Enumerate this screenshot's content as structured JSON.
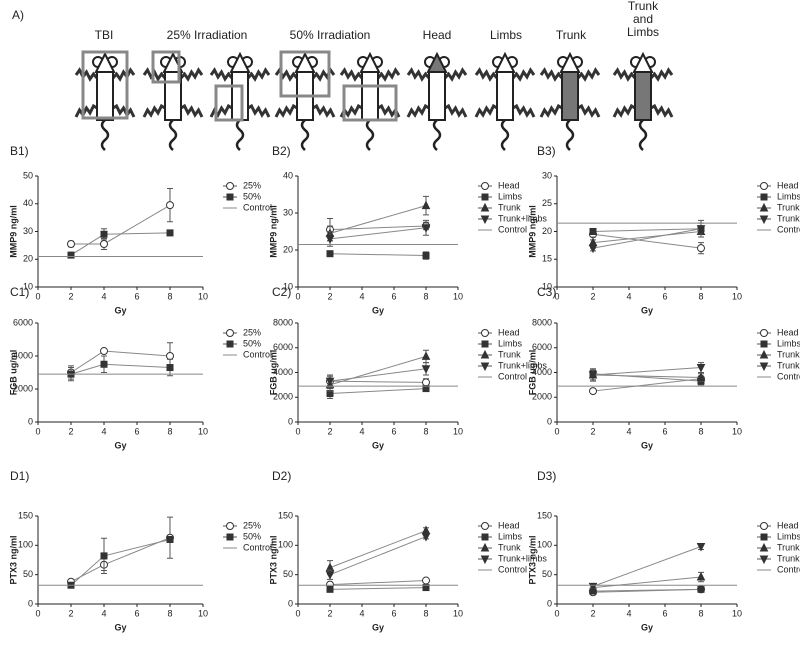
{
  "figure": {
    "label": "A)",
    "groups": [
      "TBI",
      "25% Irradiation",
      "50% Irradiation",
      "Head",
      "Limbs",
      "Trunk",
      "Trunk and Limbs"
    ]
  },
  "chart_data": [
    {
      "type": "line",
      "panel": "B1)",
      "y_label": "MMP9 ng/ml",
      "x_label": "Gy",
      "xlim": [
        0,
        10
      ],
      "xticks": [
        0,
        2,
        4,
        6,
        8,
        10
      ],
      "ylim": [
        10,
        50
      ],
      "yticks": [
        10,
        20,
        30,
        40,
        50
      ],
      "series": [
        {
          "name": "25%",
          "marker": "circle",
          "color": "#333333",
          "x": [
            2,
            4,
            8
          ],
          "values": [
            25.5,
            25.5,
            39.5
          ],
          "errors": [
            1,
            2,
            6
          ]
        },
        {
          "name": "50%",
          "marker": "square",
          "color": "#333333",
          "x": [
            2,
            4,
            8
          ],
          "values": [
            21.5,
            29,
            29.5
          ],
          "errors": [
            0.5,
            2,
            1
          ]
        },
        {
          "name": "Control",
          "marker": "none",
          "color": "#888888",
          "x": [
            0,
            10
          ],
          "values": [
            21,
            21
          ]
        }
      ]
    },
    {
      "type": "line",
      "panel": "B2)",
      "y_label": "MMP9 ng/ml",
      "x_label": "Gy",
      "xlim": [
        0,
        10
      ],
      "xticks": [
        0,
        2,
        4,
        6,
        8,
        10
      ],
      "ylim": [
        10,
        40
      ],
      "yticks": [
        10,
        20,
        30,
        40
      ],
      "series": [
        {
          "name": "Head",
          "marker": "circle",
          "color": "#333333",
          "x": [
            2,
            8
          ],
          "values": [
            25.5,
            26.5
          ],
          "errors": [
            3,
            1
          ]
        },
        {
          "name": "Limbs",
          "marker": "square",
          "color": "#333333",
          "x": [
            2,
            8
          ],
          "values": [
            19,
            18.5
          ],
          "errors": [
            0.5,
            1
          ]
        },
        {
          "name": "Trunk",
          "marker": "triangle",
          "color": "#333333",
          "x": [
            2,
            8
          ],
          "values": [
            24.5,
            32
          ],
          "errors": [
            2,
            2.5
          ]
        },
        {
          "name": "Trunk+limbs",
          "marker": "triangle-down",
          "color": "#333333",
          "x": [
            2,
            8
          ],
          "values": [
            23,
            26
          ],
          "errors": [
            2,
            2
          ]
        },
        {
          "name": "Control",
          "marker": "none",
          "color": "#888888",
          "x": [
            0,
            10
          ],
          "values": [
            21.5,
            21.5
          ]
        }
      ]
    },
    {
      "type": "line",
      "panel": "B3)",
      "y_label": "MMP9 ng/ml",
      "x_label": "Gy",
      "xlim": [
        0,
        10
      ],
      "xticks": [
        0,
        2,
        4,
        6,
        8,
        10
      ],
      "ylim": [
        10,
        30
      ],
      "yticks": [
        10,
        15,
        20,
        25,
        30
      ],
      "series": [
        {
          "name": "Head",
          "marker": "circle",
          "color": "#333333",
          "x": [
            2,
            8
          ],
          "values": [
            19.5,
            17
          ],
          "errors": [
            1,
            1
          ]
        },
        {
          "name": "Limbs",
          "marker": "square",
          "color": "#333333",
          "x": [
            2,
            8
          ],
          "values": [
            20,
            20.5
          ],
          "errors": [
            0.5,
            1
          ]
        },
        {
          "name": "Trunk",
          "marker": "triangle",
          "color": "#333333",
          "x": [
            2,
            8
          ],
          "values": [
            18,
            20
          ],
          "errors": [
            1,
            1
          ]
        },
        {
          "name": "Trunk+limbs",
          "marker": "triangle-down",
          "color": "#333333",
          "x": [
            2,
            8
          ],
          "values": [
            17,
            20.5
          ],
          "errors": [
            0.5,
            1.5
          ]
        },
        {
          "name": "Control",
          "marker": "none",
          "color": "#888888",
          "x": [
            0,
            10
          ],
          "values": [
            21.5,
            21.5
          ]
        }
      ]
    },
    {
      "type": "line",
      "panel": "C1)",
      "y_label": "FGB ug/ml",
      "x_label": "Gy",
      "xlim": [
        0,
        10
      ],
      "xticks": [
        0,
        2,
        4,
        6,
        8,
        10
      ],
      "ylim": [
        0,
        6000
      ],
      "yticks": [
        0,
        2000,
        4000,
        6000
      ],
      "series": [
        {
          "name": "25%",
          "marker": "circle",
          "color": "#333333",
          "x": [
            2,
            4,
            8
          ],
          "values": [
            3000,
            4300,
            4000
          ],
          "errors": [
            400,
            100,
            800
          ]
        },
        {
          "name": "50%",
          "marker": "square",
          "color": "#333333",
          "x": [
            2,
            4,
            8
          ],
          "values": [
            2900,
            3500,
            3300
          ],
          "errors": [
            400,
            500,
            500
          ]
        },
        {
          "name": "Control",
          "marker": "none",
          "color": "#888888",
          "x": [
            0,
            10
          ],
          "values": [
            2900,
            2900
          ]
        }
      ]
    },
    {
      "type": "line",
      "panel": "C2)",
      "y_label": "FGB ug/ml",
      "x_label": "Gy",
      "xlim": [
        0,
        10
      ],
      "xticks": [
        0,
        2,
        4,
        6,
        8,
        10
      ],
      "ylim": [
        0,
        8000
      ],
      "yticks": [
        0,
        2000,
        4000,
        6000,
        8000
      ],
      "series": [
        {
          "name": "Head",
          "marker": "circle",
          "color": "#333333",
          "x": [
            2,
            8
          ],
          "values": [
            3300,
            3200
          ],
          "errors": [
            400,
            300
          ]
        },
        {
          "name": "Limbs",
          "marker": "square",
          "color": "#333333",
          "x": [
            2,
            8
          ],
          "values": [
            2300,
            2700
          ],
          "errors": [
            400,
            200
          ]
        },
        {
          "name": "Trunk",
          "marker": "triangle",
          "color": "#333333",
          "x": [
            2,
            8
          ],
          "values": [
            3000,
            5300
          ],
          "errors": [
            500,
            500
          ]
        },
        {
          "name": "Trunk+limbs",
          "marker": "triangle-down",
          "color": "#333333",
          "x": [
            2,
            8
          ],
          "values": [
            3300,
            4300
          ],
          "errors": [
            500,
            500
          ]
        },
        {
          "name": "Control",
          "marker": "none",
          "color": "#888888",
          "x": [
            0,
            10
          ],
          "values": [
            2900,
            2900
          ]
        }
      ]
    },
    {
      "type": "line",
      "panel": "C3)",
      "y_label": "FGB ug/ml",
      "x_label": "Gy",
      "xlim": [
        0,
        10
      ],
      "xticks": [
        0,
        2,
        4,
        6,
        8,
        10
      ],
      "ylim": [
        0,
        8000
      ],
      "yticks": [
        0,
        2000,
        4000,
        6000,
        8000
      ],
      "series": [
        {
          "name": "Head",
          "marker": "circle",
          "color": "#333333",
          "x": [
            2,
            8
          ],
          "values": [
            2500,
            3500
          ],
          "errors": [
            100,
            200
          ]
        },
        {
          "name": "Limbs",
          "marker": "square",
          "color": "#333333",
          "x": [
            2,
            8
          ],
          "values": [
            3900,
            3300
          ],
          "errors": [
            300,
            300
          ]
        },
        {
          "name": "Trunk",
          "marker": "triangle",
          "color": "#333333",
          "x": [
            2,
            8
          ],
          "values": [
            3800,
            3600
          ],
          "errors": [
            400,
            300
          ]
        },
        {
          "name": "Trunk+limbs",
          "marker": "triangle-down",
          "color": "#333333",
          "x": [
            2,
            8
          ],
          "values": [
            3800,
            4400
          ],
          "errors": [
            500,
            400
          ]
        },
        {
          "name": "Control",
          "marker": "none",
          "color": "#888888",
          "x": [
            0,
            10
          ],
          "values": [
            2900,
            2900
          ]
        }
      ]
    },
    {
      "type": "line",
      "panel": "D1)",
      "y_label": "PTX3 ng/ml",
      "x_label": "Gy",
      "xlim": [
        0,
        10
      ],
      "xticks": [
        0,
        2,
        4,
        6,
        8,
        10
      ],
      "ylim": [
        0,
        150
      ],
      "yticks": [
        0,
        50,
        100,
        150
      ],
      "series": [
        {
          "name": "25%",
          "marker": "circle",
          "color": "#333333",
          "x": [
            2,
            4,
            8
          ],
          "values": [
            38,
            67,
            113
          ],
          "errors": [
            3,
            10,
            35
          ]
        },
        {
          "name": "50%",
          "marker": "square",
          "color": "#333333",
          "x": [
            2,
            4,
            8
          ],
          "values": [
            32,
            82,
            110
          ],
          "errors": [
            2,
            30,
            5
          ]
        },
        {
          "name": "Control",
          "marker": "none",
          "color": "#888888",
          "x": [
            0,
            10
          ],
          "values": [
            32,
            32
          ]
        }
      ]
    },
    {
      "type": "line",
      "panel": "D2)",
      "y_label": "PTX3 ng/ml",
      "x_label": "Gy",
      "xlim": [
        0,
        10
      ],
      "xticks": [
        0,
        2,
        4,
        6,
        8,
        10
      ],
      "ylim": [
        0,
        150
      ],
      "yticks": [
        0,
        50,
        100,
        150
      ],
      "series": [
        {
          "name": "Head",
          "marker": "circle",
          "color": "#333333",
          "x": [
            2,
            8
          ],
          "values": [
            33,
            40
          ],
          "errors": [
            2,
            2
          ]
        },
        {
          "name": "Limbs",
          "marker": "square",
          "color": "#333333",
          "x": [
            2,
            8
          ],
          "values": [
            25,
            28
          ],
          "errors": [
            2,
            2
          ]
        },
        {
          "name": "Trunk",
          "marker": "triangle",
          "color": "#333333",
          "x": [
            2,
            8
          ],
          "values": [
            62,
            125
          ],
          "errors": [
            12,
            5
          ]
        },
        {
          "name": "Trunk+limbs",
          "marker": "triangle-down",
          "color": "#333333",
          "x": [
            2,
            8
          ],
          "values": [
            50,
            115
          ],
          "errors": [
            8,
            4
          ]
        },
        {
          "name": "Control",
          "marker": "none",
          "color": "#888888",
          "x": [
            0,
            10
          ],
          "values": [
            32,
            32
          ]
        }
      ]
    },
    {
      "type": "line",
      "panel": "D3)",
      "y_label": "PTX3 ng/ml",
      "x_label": "Gy",
      "xlim": [
        0,
        10
      ],
      "xticks": [
        0,
        2,
        4,
        6,
        8,
        10
      ],
      "ylim": [
        0,
        150
      ],
      "yticks": [
        0,
        50,
        100,
        150
      ],
      "series": [
        {
          "name": "Head",
          "marker": "circle",
          "color": "#333333",
          "x": [
            2,
            8
          ],
          "values": [
            20,
            25
          ],
          "errors": [
            2,
            2
          ]
        },
        {
          "name": "Limbs",
          "marker": "square",
          "color": "#333333",
          "x": [
            2,
            8
          ],
          "values": [
            22,
            25
          ],
          "errors": [
            2,
            2
          ]
        },
        {
          "name": "Trunk",
          "marker": "triangle",
          "color": "#333333",
          "x": [
            2,
            8
          ],
          "values": [
            28,
            46
          ],
          "errors": [
            3,
            8
          ]
        },
        {
          "name": "Trunk+limbs",
          "marker": "triangle-down",
          "color": "#333333",
          "x": [
            2,
            8
          ],
          "values": [
            30,
            98
          ],
          "errors": [
            3,
            5
          ]
        },
        {
          "name": "Control",
          "marker": "none",
          "color": "#888888",
          "x": [
            0,
            10
          ],
          "values": [
            32,
            32
          ]
        }
      ]
    }
  ]
}
